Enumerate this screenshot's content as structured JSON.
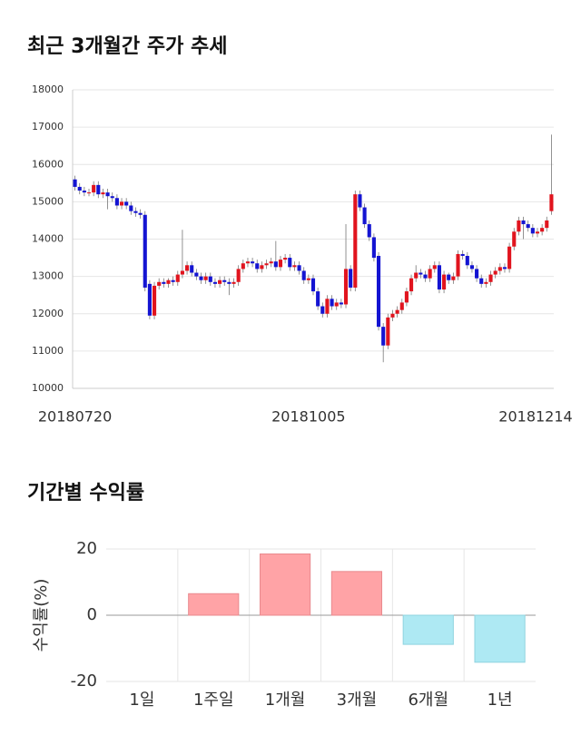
{
  "chart_data": [
    {
      "type": "candlestick",
      "title": "최근 3개월간 주가 추세",
      "x": [
        "20180720",
        null,
        null,
        null,
        null,
        null,
        null,
        null,
        null,
        null,
        null,
        null,
        null,
        null,
        null,
        null,
        null,
        null,
        null,
        null,
        null,
        null,
        null,
        null,
        null,
        null,
        null,
        null,
        null,
        null,
        null,
        null,
        null,
        null,
        null,
        null,
        null,
        null,
        null,
        null,
        null,
        null,
        null,
        null,
        null,
        null,
        null,
        null,
        null,
        null,
        "20181005",
        null,
        null,
        null,
        null,
        null,
        null,
        null,
        null,
        null,
        null,
        null,
        null,
        null,
        null,
        null,
        null,
        null,
        null,
        null,
        null,
        null,
        null,
        null,
        null,
        null,
        null,
        null,
        null,
        null,
        null,
        null,
        null,
        null,
        null,
        null,
        null,
        null,
        null,
        null,
        null,
        null,
        null,
        null,
        null,
        null,
        null,
        null,
        null,
        null,
        null,
        null,
        "20181214"
      ],
      "open": [
        15600,
        15400,
        15300,
        15250,
        15250,
        15450,
        15200,
        15250,
        15150,
        15100,
        14900,
        15000,
        14900,
        14750,
        14700,
        14650,
        12800,
        11950,
        12750,
        12850,
        12800,
        12900,
        12850,
        13050,
        13150,
        13300,
        13100,
        13000,
        12900,
        13000,
        12850,
        12800,
        12900,
        12850,
        12800,
        12850,
        13200,
        13350,
        13400,
        13350,
        13200,
        13300,
        13350,
        13400,
        13250,
        13450,
        13500,
        13250,
        13300,
        13150,
        12900,
        12950,
        12600,
        12200,
        12000,
        12400,
        12200,
        12300,
        12250,
        13200,
        12700,
        15200,
        14850,
        14400,
        14050,
        13550,
        11650,
        11150,
        11900,
        12000,
        12100,
        12300,
        12600,
        12950,
        13100,
        13050,
        12950,
        13200,
        13300,
        12650,
        13050,
        12900,
        13000,
        13600,
        13550,
        13300,
        13200,
        12950,
        12800,
        12850,
        13050,
        13150,
        13250,
        13200,
        13800,
        14200,
        14500,
        14400,
        14300,
        14150,
        14200,
        14300,
        14750
      ],
      "high": [
        15700,
        15500,
        15400,
        15350,
        15550,
        15550,
        15350,
        15350,
        15250,
        15200,
        15100,
        15100,
        15000,
        14850,
        14800,
        14750,
        12900,
        12850,
        12950,
        12950,
        12950,
        13000,
        13150,
        14250,
        13400,
        13400,
        13200,
        13100,
        13100,
        13100,
        12950,
        13000,
        13000,
        12950,
        12950,
        13300,
        13450,
        13500,
        13500,
        13450,
        13400,
        13450,
        13500,
        13950,
        13550,
        13600,
        13600,
        13400,
        13400,
        13250,
        13050,
        13050,
        12700,
        12300,
        12500,
        12500,
        12400,
        12400,
        14400,
        13300,
        15300,
        15300,
        14950,
        14500,
        14150,
        13650,
        11750,
        12000,
        12100,
        12200,
        12400,
        12700,
        13050,
        13300,
        13200,
        13150,
        13300,
        13400,
        13400,
        13150,
        13100,
        13100,
        13700,
        13700,
        13650,
        13400,
        13300,
        13050,
        12950,
        13150,
        13250,
        13350,
        13350,
        13900,
        14300,
        14600,
        14600,
        14500,
        14400,
        14300,
        14400,
        14600,
        16800
      ],
      "low": [
        15300,
        15200,
        15150,
        15150,
        15150,
        15100,
        15100,
        14800,
        15000,
        14800,
        14800,
        14800,
        14650,
        14600,
        14550,
        12600,
        11850,
        11850,
        12650,
        12700,
        12700,
        12750,
        12750,
        12950,
        13050,
        13000,
        12900,
        12800,
        12800,
        12750,
        12700,
        12700,
        12750,
        12500,
        12700,
        12750,
        13100,
        13250,
        13250,
        13100,
        13100,
        13200,
        13250,
        13150,
        13150,
        13350,
        13150,
        13150,
        13050,
        12800,
        12800,
        12500,
        12100,
        11900,
        11900,
        12100,
        12100,
        12150,
        12150,
        12600,
        12600,
        14750,
        14300,
        13950,
        13400,
        11550,
        10700,
        11050,
        11800,
        11900,
        12000,
        12200,
        12500,
        12850,
        12950,
        12850,
        12850,
        13100,
        12550,
        12550,
        12800,
        12800,
        12900,
        13450,
        13200,
        13100,
        12850,
        12700,
        12700,
        12750,
        12950,
        13050,
        13100,
        13100,
        13700,
        14100,
        14000,
        14200,
        14050,
        14050,
        14100,
        14200,
        14650
      ],
      "close": [
        15400,
        15300,
        15250,
        15250,
        15450,
        15200,
        15250,
        15150,
        15100,
        14900,
        15000,
        14900,
        14750,
        14700,
        14650,
        12700,
        11950,
        12750,
        12850,
        12800,
        12900,
        12850,
        13050,
        13150,
        13300,
        13100,
        13000,
        12900,
        13000,
        12850,
        12800,
        12900,
        12850,
        12800,
        12850,
        13200,
        13350,
        13400,
        13350,
        13200,
        13300,
        13350,
        13400,
        13250,
        13450,
        13500,
        13250,
        13300,
        13150,
        12900,
        12950,
        12600,
        12200,
        12000,
        12400,
        12200,
        12300,
        12250,
        13200,
        12700,
        15200,
        14850,
        14400,
        14050,
        13500,
        11650,
        11150,
        11900,
        12000,
        12100,
        12300,
        12600,
        12950,
        13100,
        13050,
        12950,
        13200,
        13300,
        12650,
        13050,
        12900,
        13000,
        13600,
        13550,
        13300,
        13200,
        12950,
        12800,
        12850,
        13050,
        13150,
        13250,
        13200,
        13800,
        14200,
        14500,
        14400,
        14300,
        14150,
        14200,
        14300,
        14500,
        15200
      ],
      "up_color": "#e1141e",
      "down_color": "#1414d2",
      "ylim": [
        10000,
        18000
      ],
      "yticks": [
        10000,
        11000,
        12000,
        13000,
        14000,
        15000,
        16000,
        17000,
        18000
      ],
      "grid": true
    },
    {
      "type": "bar",
      "title": "기간별 수익률",
      "ylabel": "수익률(%)",
      "categories": [
        "1일",
        "1주일",
        "1개월",
        "3개월",
        "6개월",
        "1년"
      ],
      "values": [
        0,
        6.5,
        18.5,
        13.2,
        -8.8,
        -14.2
      ],
      "positive_color": "#ffa3a6",
      "negative_color": "#aee9f3",
      "ylim": [
        -20,
        20
      ],
      "yticks": [
        -20,
        0,
        20
      ],
      "grid": true
    }
  ]
}
